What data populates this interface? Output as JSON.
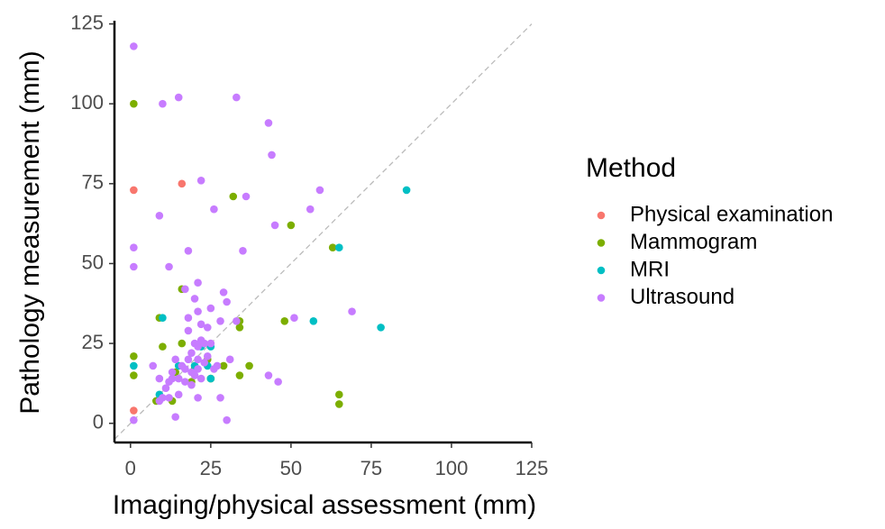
{
  "chart_data": {
    "type": "scatter",
    "x_label": "Imaging/physical assessment (mm)",
    "y_label": "Pathology measurement (mm)",
    "legend_title": "Method",
    "legend_position": "right",
    "reference_line": "dashed",
    "xlim": [
      -5,
      125
    ],
    "ylim": [
      -6,
      126
    ],
    "xticks": [
      0,
      25,
      50,
      75,
      100,
      125
    ],
    "yticks": [
      0,
      25,
      50,
      75,
      100,
      125
    ],
    "series": [
      {
        "name": "Physical examination",
        "color": "#F8766D",
        "x": [
          1,
          1,
          16
        ],
        "values": [
          4,
          73,
          75
        ]
      },
      {
        "name": "Mammogram",
        "color": "#7CAE00",
        "x": [
          1,
          1,
          1,
          9,
          10,
          8,
          13,
          16,
          16,
          19,
          24,
          32,
          34,
          34,
          34,
          37,
          29,
          48,
          50,
          63,
          65,
          65,
          14,
          20,
          25
        ],
        "values": [
          100,
          21,
          15,
          33,
          24,
          7,
          7,
          42,
          25,
          13,
          20,
          71,
          32,
          30,
          15,
          18,
          18,
          32,
          62,
          55,
          9,
          6,
          16,
          17,
          14
        ]
      },
      {
        "name": "MRI",
        "color": "#00BFC4",
        "x": [
          1,
          10,
          9,
          15,
          22,
          25,
          24,
          25,
          57,
          65,
          78,
          86,
          20
        ],
        "values": [
          18,
          33,
          9,
          18,
          24,
          24,
          18,
          14,
          32,
          55,
          30,
          73,
          18
        ]
      },
      {
        "name": "Ultrasound",
        "color": "#C77CFF",
        "x": [
          1,
          1,
          1,
          1,
          9,
          10,
          15,
          33,
          43,
          44,
          22,
          26,
          59,
          36,
          56,
          45,
          35,
          18,
          12,
          21,
          20,
          21,
          25,
          30,
          29,
          17,
          18,
          22,
          24,
          18,
          28,
          33,
          51,
          69,
          22,
          20,
          21,
          23,
          25,
          19,
          18,
          16,
          17,
          19,
          20,
          21,
          14,
          15,
          13,
          12,
          11,
          13,
          15,
          10,
          12,
          9,
          7,
          14,
          21,
          28,
          30,
          31,
          27,
          43,
          46,
          22,
          24,
          19,
          17,
          23,
          21,
          26,
          9
        ],
        "values": [
          118,
          55,
          49,
          1,
          65,
          100,
          102,
          102,
          94,
          84,
          76,
          67,
          73,
          71,
          67,
          62,
          54,
          54,
          49,
          44,
          39,
          35,
          36,
          38,
          41,
          42,
          33,
          31,
          30,
          29,
          32,
          32,
          33,
          35,
          26,
          25,
          24,
          25,
          25,
          22,
          20,
          18,
          17,
          16,
          15,
          17,
          20,
          14,
          16,
          13,
          11,
          14,
          9,
          8,
          8,
          14,
          18,
          2,
          8,
          8,
          1,
          20,
          18,
          15,
          13,
          14,
          21,
          12,
          13,
          19,
          20,
          17,
          7
        ]
      }
    ]
  }
}
